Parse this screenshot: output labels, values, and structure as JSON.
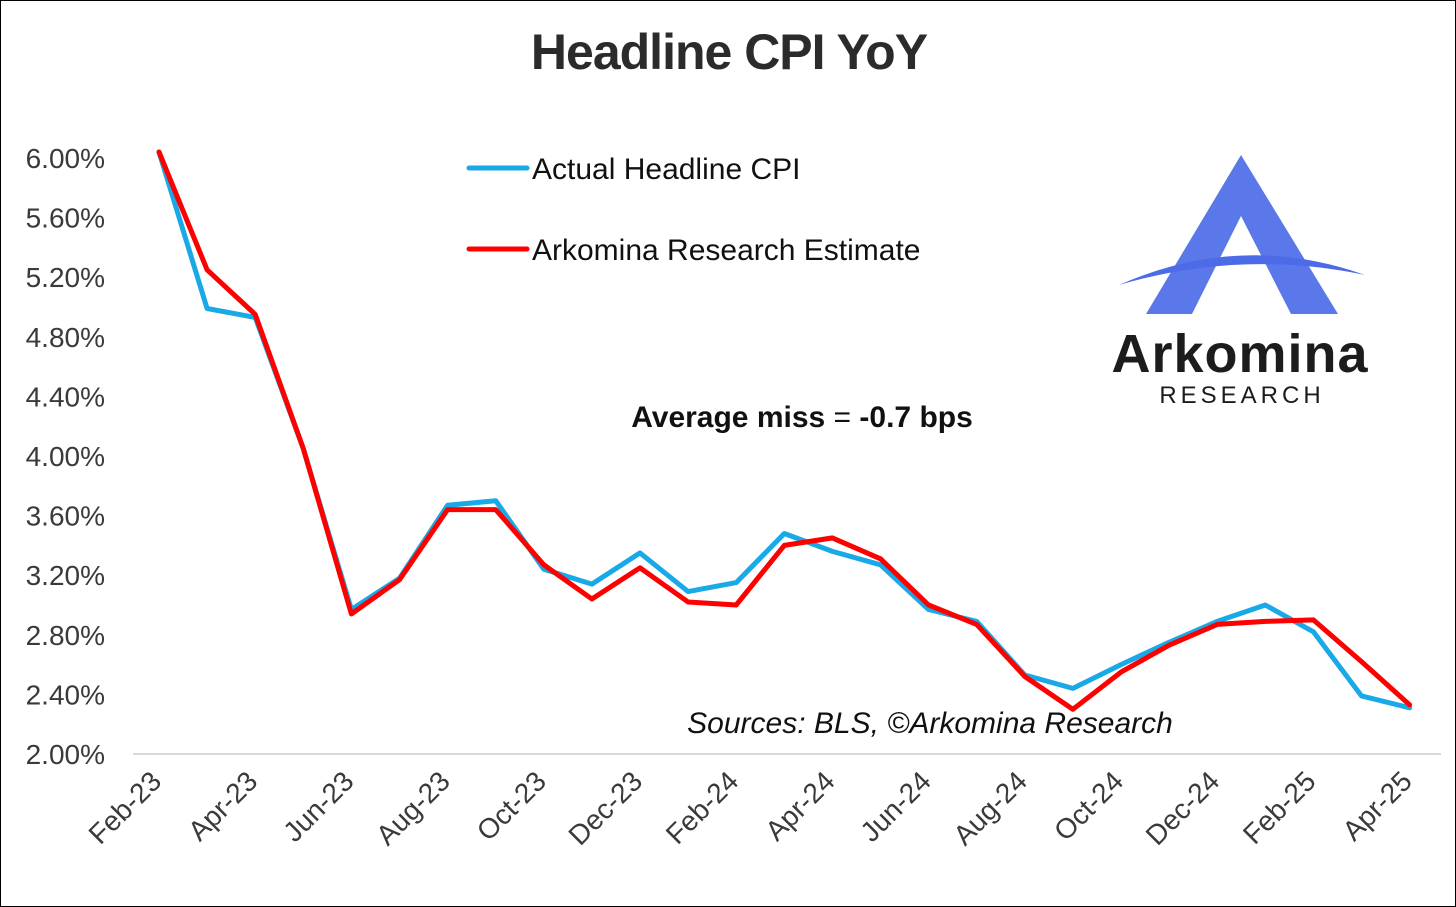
{
  "chart_data": {
    "type": "line",
    "title": "Headline CPI YoY",
    "categories": [
      "Feb-23",
      "Mar-23",
      "Apr-23",
      "May-23",
      "Jun-23",
      "Jul-23",
      "Aug-23",
      "Sep-23",
      "Oct-23",
      "Nov-23",
      "Dec-23",
      "Jan-24",
      "Feb-24",
      "Mar-24",
      "Apr-24",
      "May-24",
      "Jun-24",
      "Jul-24",
      "Aug-24",
      "Sep-24",
      "Oct-24",
      "Nov-24",
      "Dec-24",
      "Jan-25",
      "Feb-25",
      "Mar-25",
      "Apr-25"
    ],
    "x_tick_labels": [
      "Feb-23",
      "Apr-23",
      "Jun-23",
      "Aug-23",
      "Oct-23",
      "Dec-23",
      "Feb-24",
      "Apr-24",
      "Jun-24",
      "Aug-24",
      "Oct-24",
      "Dec-24",
      "Feb-25",
      "Apr-25"
    ],
    "y_tick_labels": [
      "2.00%",
      "2.40%",
      "2.80%",
      "3.20%",
      "3.60%",
      "4.00%",
      "4.40%",
      "4.80%",
      "5.20%",
      "5.60%",
      "6.00%"
    ],
    "ylim": [
      2.0,
      6.0
    ],
    "series": [
      {
        "name": "Actual Headline CPI",
        "color": "#18a9e6",
        "values": [
          6.04,
          4.99,
          4.93,
          4.05,
          2.97,
          3.18,
          3.67,
          3.7,
          3.24,
          3.14,
          3.35,
          3.09,
          3.15,
          3.48,
          3.36,
          3.27,
          2.97,
          2.89,
          2.53,
          2.44,
          2.6,
          2.75,
          2.89,
          3.0,
          2.82,
          2.39,
          2.31
        ]
      },
      {
        "name": "Arkomina Research Estimate",
        "color": "#ff0000",
        "values": [
          6.04,
          5.25,
          4.95,
          4.05,
          2.94,
          3.17,
          3.64,
          3.64,
          3.27,
          3.04,
          3.25,
          3.02,
          3.0,
          3.4,
          3.45,
          3.31,
          3.0,
          2.87,
          2.52,
          2.3,
          2.55,
          2.73,
          2.87,
          2.89,
          2.9,
          2.62,
          2.33
        ]
      }
    ],
    "legend_placement": "top-center",
    "grid": false,
    "annotation": {
      "label": "Average miss",
      "equals": " = ",
      "value": "-0.7 bps"
    },
    "source_note": "Sources: BLS, ©Arkomina Research"
  },
  "logo": {
    "word": "Arkomina",
    "sub": "RESEARCH",
    "triangle_color": "#5b78ea",
    "arc_color": "#4d6be6"
  },
  "axis_color": "#d9d9d9"
}
